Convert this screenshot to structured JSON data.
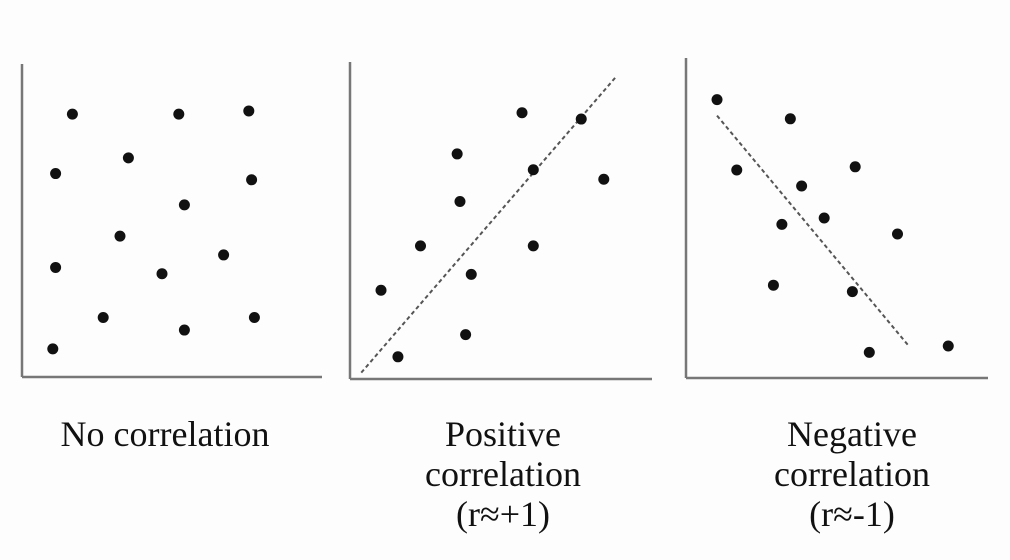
{
  "chart_data": [
    {
      "type": "scatter",
      "title": "No correlation",
      "color": "#111111",
      "x": [
        1.8,
        5.6,
        8.1,
        1.2,
        3.8,
        8.2,
        5.8,
        3.5,
        1.2,
        5.0,
        7.2,
        2.9,
        5.8,
        8.3,
        1.1
      ],
      "y": [
        8.4,
        8.4,
        8.5,
        6.5,
        7.0,
        6.3,
        5.5,
        4.5,
        3.5,
        3.3,
        3.9,
        1.9,
        1.5,
        1.9,
        0.9
      ],
      "xlim": [
        0,
        10
      ],
      "ylim": [
        0,
        10
      ]
    },
    {
      "type": "scatter",
      "title": "Positive correlation (r≈+1)",
      "color": "#111111",
      "x": [
        1.7,
        1.1,
        2.5,
        4.1,
        4.3,
        3.9,
        3.8,
        6.5,
        6.5,
        6.1,
        8.2,
        9.0
      ],
      "y": [
        0.7,
        2.8,
        4.2,
        1.4,
        3.3,
        5.6,
        7.1,
        4.2,
        6.6,
        8.4,
        8.2,
        6.3
      ],
      "xlim": [
        0,
        10
      ],
      "ylim": [
        0,
        10
      ],
      "trendline": {
        "x": [
          0.4,
          9.4
        ],
        "y": [
          0.2,
          9.5
        ]
      }
    },
    {
      "type": "scatter",
      "title": "Negative correlation (r≈-1)",
      "color": "#111111",
      "x": [
        1.1,
        3.7,
        1.8,
        4.1,
        6.0,
        3.4,
        4.9,
        7.5,
        3.1,
        5.9,
        6.5,
        9.3
      ],
      "y": [
        8.7,
        8.1,
        6.5,
        6.0,
        6.6,
        4.8,
        5.0,
        4.5,
        2.9,
        2.7,
        0.8,
        1.0
      ],
      "xlim": [
        0,
        10
      ],
      "ylim": [
        0,
        10
      ],
      "trendline": {
        "x": [
          1.1,
          7.9
        ],
        "y": [
          8.2,
          1.0
        ]
      }
    }
  ]
}
